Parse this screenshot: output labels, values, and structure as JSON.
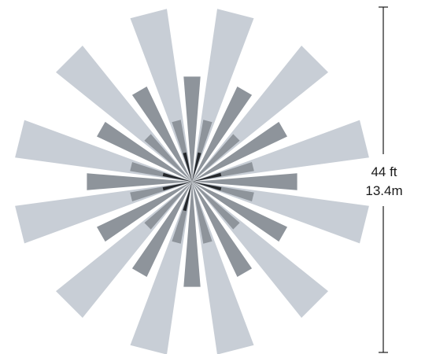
{
  "diagram": {
    "dimension": {
      "feet_label": "44 ft",
      "meters_label": "13.4m"
    },
    "colors": {
      "background": "#ffffff",
      "outer_ray": "#c8ced6",
      "mid_ray": "#8e949b",
      "inner_ray": "#25282c",
      "dimension_line": "#1a1a1a"
    }
  }
}
